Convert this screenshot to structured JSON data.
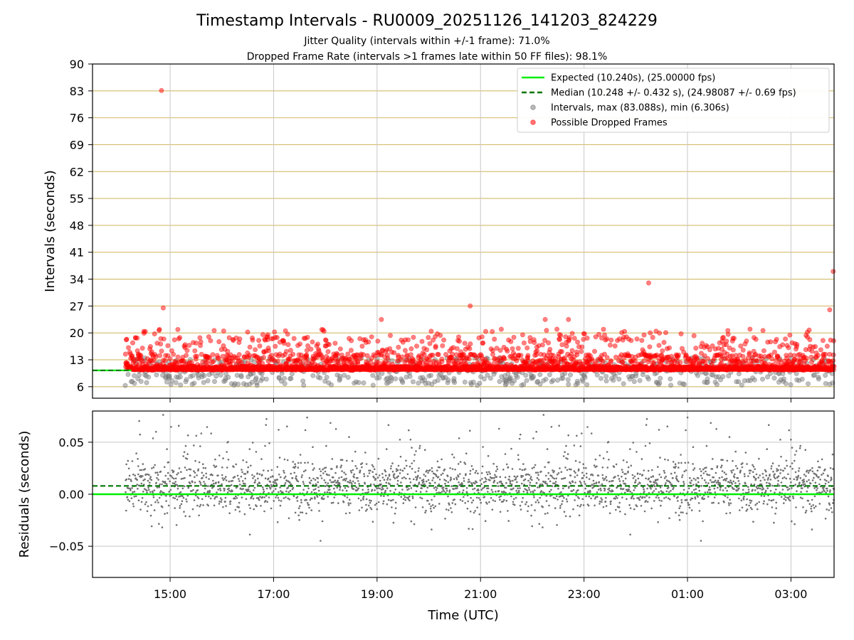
{
  "figure": {
    "title": "Timestamp Intervals - RU0009_20251126_141203_824229",
    "subtitle_1": "Jitter Quality (intervals within +/-1 frame): 71.0%",
    "subtitle_2": "Dropped Frame Rate (intervals >1 frames late within 50 FF files): 98.1%"
  },
  "chart_data": [
    {
      "type": "scatter",
      "ylabel": "Intervals (seconds)",
      "ylim": [
        3,
        90
      ],
      "yticks": [
        6,
        13,
        20,
        27,
        34,
        41,
        48,
        55,
        62,
        69,
        76,
        83,
        90
      ],
      "xlim": [
        "13:30",
        "03:50"
      ],
      "xticks": [
        "15:00",
        "17:00",
        "19:00",
        "21:00",
        "23:00",
        "01:00",
        "03:00"
      ],
      "grid": "on",
      "legend_position": "top-right",
      "expected_interval": 10.24,
      "median_interval": 10.248,
      "legend": [
        {
          "label": "Expected (10.240s), (25.00000 fps)",
          "style": "solid-line",
          "color": "#00ee00"
        },
        {
          "label": "Median (10.248 +/- 0.432 s), (24.98087 +/- 0.69 fps)",
          "style": "dashed-line",
          "color": "#007700"
        },
        {
          "label": "Intervals, max (83.088s), min (6.306s)",
          "style": "marker",
          "color": "#808080"
        },
        {
          "label": "Possible Dropped Frames",
          "style": "marker",
          "color": "#ff0000"
        }
      ],
      "notable_points": [
        {
          "x": "14:50",
          "y": 83.088
        },
        {
          "x": "14:52",
          "y": 26.5
        },
        {
          "x": "20:48",
          "y": 27.0
        },
        {
          "x": "00:15",
          "y": 33.0
        },
        {
          "x": "03:49",
          "y": 36.0
        },
        {
          "x": "03:45",
          "y": 26.0
        },
        {
          "x": "19:05",
          "y": 23.5
        },
        {
          "x": "22:15",
          "y": 23.5
        },
        {
          "x": "22:42",
          "y": 23.5
        },
        {
          "x": "14:08",
          "y": 6.306
        }
      ],
      "series": [
        {
          "name": "Intervals",
          "color": "#808080",
          "typical_range": [
            6.3,
            13.5
          ]
        },
        {
          "name": "Possible Dropped Frames",
          "color": "#ff0000",
          "typical_range": [
            10.3,
            20.5
          ]
        }
      ]
    },
    {
      "type": "scatter",
      "ylabel": "Residuals (seconds)",
      "xlabel": "Time (UTC)",
      "ylim": [
        -0.08,
        0.08
      ],
      "yticks": [
        "−0.05",
        "0.00",
        "0.05"
      ],
      "ytick_values": [
        -0.05,
        0.0,
        0.05
      ],
      "xlim": [
        "13:30",
        "03:50"
      ],
      "xticks": [
        "15:00",
        "17:00",
        "19:00",
        "21:00",
        "23:00",
        "01:00",
        "03:00"
      ],
      "grid": "on",
      "expected_residual": 0.0,
      "median_residual": 0.008,
      "series": [
        {
          "name": "Residuals",
          "color": "#707070",
          "typical_range": [
            -0.05,
            0.07
          ]
        }
      ]
    }
  ]
}
